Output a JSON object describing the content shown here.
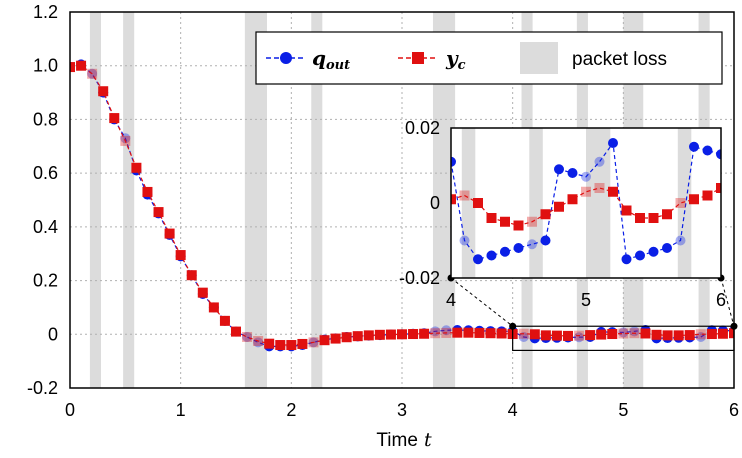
{
  "chart_data": {
    "type": "line",
    "xlabel": "Time",
    "xlabel_var": "t",
    "xlim": [
      0,
      6
    ],
    "ylim": [
      -0.2,
      1.2
    ],
    "xticks": [
      "0",
      "1",
      "2",
      "3",
      "4",
      "5",
      "6"
    ],
    "yticks": [
      "-0.2",
      "0",
      "0.2",
      "0.4",
      "0.6",
      "0.8",
      "1.0",
      "1.2"
    ],
    "grid": true,
    "legend_position": "top-right",
    "legend": {
      "q_symbol": "q",
      "q_subscript": "out",
      "y_symbol": "y",
      "y_subscript": "c",
      "loss_label": "packet loss"
    },
    "packet_loss_intervals": [
      [
        0.18,
        0.28
      ],
      [
        0.48,
        0.58
      ],
      [
        1.58,
        1.78
      ],
      [
        2.18,
        2.28
      ],
      [
        3.28,
        3.48
      ],
      [
        4.08,
        4.18
      ],
      [
        4.58,
        4.68
      ],
      [
        5.0,
        5.18
      ],
      [
        5.68,
        5.78
      ]
    ],
    "x": [
      0.0,
      0.1,
      0.2,
      0.3,
      0.4,
      0.5,
      0.6,
      0.7,
      0.8,
      0.9,
      1.0,
      1.1,
      1.2,
      1.3,
      1.4,
      1.5,
      1.6,
      1.7,
      1.8,
      1.9,
      2.0,
      2.1,
      2.2,
      2.3,
      2.4,
      2.5,
      2.6,
      2.7,
      2.8,
      2.9,
      3.0,
      3.1,
      3.2,
      3.3,
      3.4,
      3.5,
      3.6,
      3.7,
      3.8,
      3.9,
      4.0,
      4.1,
      4.2,
      4.3,
      4.4,
      4.5,
      4.6,
      4.7,
      4.8,
      4.9,
      5.0,
      5.1,
      5.2,
      5.3,
      5.4,
      5.5,
      5.6,
      5.7,
      5.8,
      5.9,
      6.0
    ],
    "series": [
      {
        "name": "q_out",
        "color": "#0a1fe6",
        "marker": "circle",
        "values": [
          0.995,
          1.005,
          0.97,
          0.9,
          0.8,
          0.73,
          0.61,
          0.52,
          0.45,
          0.37,
          0.29,
          0.22,
          0.15,
          0.1,
          0.05,
          0.01,
          -0.01,
          -0.03,
          -0.045,
          -0.045,
          -0.045,
          -0.04,
          -0.03,
          -0.02,
          -0.015,
          -0.01,
          -0.008,
          -0.005,
          -0.003,
          -0.001,
          0.0,
          0.002,
          0.004,
          0.011,
          0.015,
          0.016,
          0.015,
          0.013,
          0.012,
          0.011,
          0.011,
          -0.01,
          -0.015,
          -0.014,
          -0.013,
          -0.012,
          -0.011,
          -0.01,
          0.009,
          0.008,
          0.007,
          0.011,
          0.016,
          -0.015,
          -0.014,
          -0.013,
          -0.012,
          -0.01,
          0.015,
          0.014,
          0.013
        ]
      },
      {
        "name": "y_c",
        "color": "#e01010",
        "marker": "square",
        "values": [
          0.995,
          1.0,
          0.97,
          0.905,
          0.805,
          0.72,
          0.62,
          0.53,
          0.455,
          0.375,
          0.295,
          0.22,
          0.155,
          0.1,
          0.05,
          0.01,
          -0.01,
          -0.025,
          -0.035,
          -0.04,
          -0.04,
          -0.036,
          -0.03,
          -0.022,
          -0.016,
          -0.011,
          -0.007,
          -0.004,
          -0.002,
          -0.001,
          0.0,
          0.001,
          0.002,
          0.004,
          0.005,
          0.006,
          0.006,
          0.005,
          0.004,
          0.003,
          0.001,
          0.002,
          0.0,
          -0.004,
          -0.005,
          -0.006,
          -0.005,
          -0.003,
          -0.001,
          0.001,
          0.003,
          0.004,
          0.003,
          -0.002,
          -0.004,
          -0.004,
          -0.003,
          0.0,
          0.001,
          0.002,
          0.004
        ]
      }
    ],
    "inset": {
      "xlim": [
        4,
        6
      ],
      "ylim": [
        -0.02,
        0.02
      ],
      "xticks": [
        "4",
        "5",
        "6"
      ],
      "yticks": [
        "0.02",
        "0",
        "-0.02"
      ],
      "zoom_box_ylim": [
        -0.06,
        0.03
      ]
    }
  }
}
